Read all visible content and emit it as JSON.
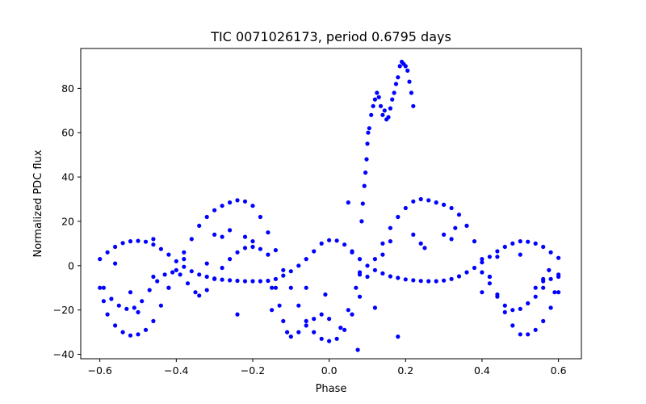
{
  "chart_data": {
    "type": "scatter",
    "title": "TIC 0071026173, period 0.6795 days",
    "xlabel": "Phase",
    "ylabel": "Normalized PDC flux",
    "xlim": [
      -0.65,
      0.66
    ],
    "ylim": [
      -42,
      98
    ],
    "xticks": [
      -0.6,
      -0.4,
      -0.2,
      0.0,
      0.2,
      0.4,
      0.6
    ],
    "xtick_labels": [
      "−0.6",
      "−0.4",
      "−0.2",
      "0.0",
      "0.2",
      "0.4",
      "0.6"
    ],
    "yticks": [
      -40,
      -20,
      0,
      20,
      40,
      60,
      80
    ],
    "ytick_labels": [
      "−40",
      "−20",
      "0",
      "20",
      "40",
      "60",
      "80"
    ],
    "grid": false,
    "marker_color": "#0000ff",
    "series": [
      {
        "points": [
          [
            -0.6,
            3
          ],
          [
            -0.58,
            6
          ],
          [
            -0.56,
            8.5
          ],
          [
            -0.54,
            10.2
          ],
          [
            -0.52,
            11
          ],
          [
            -0.5,
            11.2
          ],
          [
            -0.48,
            10.8
          ],
          [
            -0.46,
            9.5
          ],
          [
            -0.44,
            7.5
          ],
          [
            -0.42,
            5
          ],
          [
            -0.4,
            2
          ],
          [
            -0.38,
            -0.5
          ],
          [
            -0.36,
            -2.5
          ],
          [
            -0.34,
            -4
          ],
          [
            -0.32,
            -5
          ],
          [
            -0.3,
            -5.8
          ],
          [
            -0.28,
            -6.3
          ],
          [
            -0.26,
            -6.6
          ],
          [
            -0.24,
            -6.8
          ],
          [
            -0.22,
            -7
          ],
          [
            -0.2,
            -7
          ],
          [
            -0.18,
            -7
          ],
          [
            -0.16,
            -6.8
          ],
          [
            -0.14,
            -6
          ],
          [
            -0.12,
            -4.5
          ],
          [
            -0.1,
            -2.5
          ],
          [
            -0.08,
            0
          ],
          [
            -0.06,
            3
          ],
          [
            -0.04,
            6.5
          ],
          [
            -0.02,
            10
          ],
          [
            0.0,
            11.5
          ],
          [
            0.02,
            11.3
          ],
          [
            0.04,
            9.5
          ],
          [
            0.06,
            6.5
          ],
          [
            0.08,
            3
          ],
          [
            0.1,
            0
          ],
          [
            0.12,
            -2
          ],
          [
            0.14,
            -3.5
          ],
          [
            0.16,
            -4.8
          ],
          [
            0.18,
            -5.5
          ],
          [
            0.2,
            -6.2
          ],
          [
            0.22,
            -6.6
          ],
          [
            0.24,
            -6.9
          ],
          [
            0.26,
            -7
          ],
          [
            0.28,
            -7
          ],
          [
            0.3,
            -6.7
          ],
          [
            0.32,
            -6
          ],
          [
            0.34,
            -4.8
          ],
          [
            0.36,
            -3
          ],
          [
            0.38,
            -1
          ],
          [
            0.4,
            1.5
          ],
          [
            0.42,
            4
          ],
          [
            0.44,
            6.5
          ],
          [
            0.46,
            8.5
          ],
          [
            0.48,
            10
          ],
          [
            0.5,
            11
          ],
          [
            0.52,
            10.8
          ],
          [
            0.54,
            10
          ],
          [
            0.56,
            8.5
          ],
          [
            0.58,
            6
          ],
          [
            0.6,
            3.5
          ],
          [
            -0.6,
            -10
          ],
          [
            -0.59,
            -16
          ],
          [
            -0.58,
            -22
          ],
          [
            -0.56,
            -27
          ],
          [
            -0.54,
            -30
          ],
          [
            -0.52,
            -31.5
          ],
          [
            -0.5,
            -31
          ],
          [
            -0.48,
            -29
          ],
          [
            -0.46,
            -25
          ],
          [
            -0.44,
            -18
          ],
          [
            -0.42,
            -10
          ],
          [
            -0.4,
            -2
          ],
          [
            -0.38,
            6
          ],
          [
            -0.36,
            12
          ],
          [
            -0.34,
            18
          ],
          [
            -0.32,
            22
          ],
          [
            -0.3,
            25
          ],
          [
            -0.28,
            27
          ],
          [
            -0.26,
            28.5
          ],
          [
            -0.24,
            29.5
          ],
          [
            -0.22,
            29
          ],
          [
            -0.2,
            27
          ],
          [
            -0.18,
            22
          ],
          [
            -0.16,
            15
          ],
          [
            -0.14,
            7
          ],
          [
            -0.12,
            -2
          ],
          [
            -0.1,
            -10
          ],
          [
            -0.08,
            -18
          ],
          [
            -0.06,
            -25
          ],
          [
            -0.04,
            -30
          ],
          [
            -0.02,
            -33
          ],
          [
            0.0,
            -34
          ],
          [
            0.02,
            -33
          ],
          [
            0.04,
            -29
          ],
          [
            0.06,
            -22
          ],
          [
            0.08,
            -14
          ],
          [
            0.1,
            -5
          ],
          [
            0.12,
            3
          ],
          [
            0.14,
            10
          ],
          [
            0.16,
            17
          ],
          [
            0.18,
            22
          ],
          [
            0.2,
            26
          ],
          [
            0.22,
            29
          ],
          [
            0.24,
            30
          ],
          [
            0.26,
            29.5
          ],
          [
            0.28,
            28.5
          ],
          [
            0.3,
            27.5
          ],
          [
            0.32,
            26
          ],
          [
            0.34,
            23
          ],
          [
            0.36,
            18
          ],
          [
            0.38,
            11
          ],
          [
            0.4,
            3
          ],
          [
            0.42,
            -5
          ],
          [
            0.44,
            -13
          ],
          [
            0.46,
            -21
          ],
          [
            0.48,
            -27
          ],
          [
            0.5,
            -31
          ],
          [
            0.52,
            -31
          ],
          [
            0.54,
            -29
          ],
          [
            0.56,
            -25
          ],
          [
            0.58,
            -19
          ],
          [
            0.6,
            -12
          ],
          [
            -0.59,
            -10
          ],
          [
            -0.57,
            -15
          ],
          [
            -0.55,
            -18
          ],
          [
            -0.53,
            -19.5
          ],
          [
            -0.51,
            -19
          ],
          [
            -0.49,
            -16
          ],
          [
            -0.47,
            -11
          ],
          [
            -0.45,
            -7
          ],
          [
            -0.43,
            -4
          ],
          [
            -0.41,
            -3
          ],
          [
            -0.39,
            -4
          ],
          [
            -0.37,
            -8
          ],
          [
            -0.35,
            -12
          ],
          [
            -0.34,
            -13.5
          ],
          [
            -0.32,
            -11
          ],
          [
            -0.3,
            -6
          ],
          [
            -0.28,
            -1
          ],
          [
            -0.26,
            3
          ],
          [
            -0.24,
            6
          ],
          [
            -0.22,
            8
          ],
          [
            -0.2,
            8.5
          ],
          [
            -0.18,
            7.5
          ],
          [
            -0.16,
            5
          ],
          [
            -0.14,
            -10
          ],
          [
            -0.13,
            -18
          ],
          [
            -0.12,
            -25
          ],
          [
            -0.11,
            -30
          ],
          [
            -0.1,
            -32
          ],
          [
            -0.08,
            -30
          ],
          [
            -0.06,
            -27
          ],
          [
            -0.04,
            -24
          ],
          [
            -0.02,
            -22
          ],
          [
            0.0,
            -24
          ],
          [
            0.03,
            -28
          ],
          [
            0.05,
            -20
          ],
          [
            0.07,
            -10
          ],
          [
            0.08,
            -3
          ],
          [
            0.085,
            20
          ],
          [
            0.088,
            28
          ],
          [
            0.092,
            36
          ],
          [
            0.095,
            42
          ],
          [
            0.098,
            48
          ],
          [
            0.1,
            55
          ],
          [
            0.102,
            60
          ],
          [
            0.105,
            62
          ],
          [
            0.11,
            68
          ],
          [
            0.115,
            72
          ],
          [
            0.12,
            75
          ],
          [
            0.125,
            78
          ],
          [
            0.13,
            76
          ],
          [
            0.135,
            72
          ],
          [
            0.14,
            68
          ],
          [
            0.145,
            70
          ],
          [
            0.15,
            66
          ],
          [
            0.155,
            67
          ],
          [
            0.16,
            71
          ],
          [
            0.165,
            75
          ],
          [
            0.17,
            78
          ],
          [
            0.175,
            82
          ],
          [
            0.18,
            85
          ],
          [
            0.185,
            90
          ],
          [
            0.19,
            92
          ],
          [
            0.195,
            91
          ],
          [
            0.2,
            90
          ],
          [
            0.205,
            88
          ],
          [
            0.21,
            83
          ],
          [
            0.215,
            78
          ],
          [
            0.22,
            72
          ],
          [
            0.4,
            -3
          ],
          [
            0.42,
            -8
          ],
          [
            0.44,
            -14
          ],
          [
            0.46,
            -18
          ],
          [
            0.48,
            -20
          ],
          [
            0.5,
            -19.5
          ],
          [
            0.52,
            -17
          ],
          [
            0.54,
            -14
          ],
          [
            0.56,
            -10
          ],
          [
            0.58,
            -6
          ],
          [
            0.6,
            -4
          ],
          [
            0.59,
            -12
          ],
          [
            0.575,
            -2
          ],
          [
            0.56,
            -7
          ],
          [
            -0.46,
            12
          ],
          [
            -0.32,
            1
          ],
          [
            -0.28,
            13
          ],
          [
            -0.24,
            -22
          ],
          [
            -0.56,
            1
          ],
          [
            -0.52,
            -12
          ],
          [
            -0.5,
            -21
          ],
          [
            -0.46,
            -5
          ],
          [
            -0.42,
            -10
          ],
          [
            -0.38,
            3
          ],
          [
            -0.3,
            14
          ],
          [
            -0.26,
            16
          ],
          [
            -0.22,
            13
          ],
          [
            -0.2,
            11
          ],
          [
            -0.15,
            -10
          ],
          [
            -0.06,
            -10
          ],
          [
            0.05,
            28.5
          ],
          [
            0.06,
            6
          ],
          [
            0.075,
            -38
          ],
          [
            0.08,
            -4
          ],
          [
            0.12,
            -19
          ],
          [
            0.14,
            5
          ],
          [
            0.16,
            11
          ],
          [
            0.18,
            -32
          ],
          [
            0.24,
            10
          ],
          [
            0.25,
            8
          ],
          [
            0.3,
            14
          ],
          [
            0.32,
            12
          ],
          [
            0.4,
            -12
          ],
          [
            0.42,
            -5
          ],
          [
            0.44,
            4
          ],
          [
            0.5,
            5
          ],
          [
            0.54,
            -10
          ],
          [
            0.56,
            -6
          ],
          [
            0.6,
            -5
          ],
          [
            0.33,
            17
          ],
          [
            0.22,
            14
          ],
          [
            -0.01,
            -13
          ],
          [
            -0.15,
            -20
          ]
        ]
      }
    ]
  }
}
